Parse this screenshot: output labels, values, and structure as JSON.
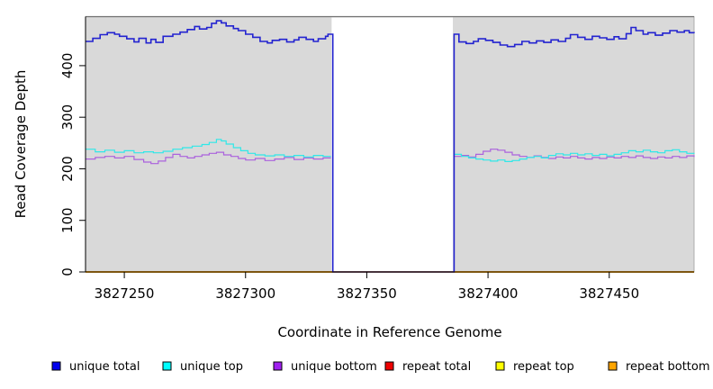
{
  "chart_data": {
    "type": "line",
    "title": "",
    "xlabel": "Coordinate in Reference Genome",
    "ylabel": "Read Coverage Depth",
    "xlim": [
      3827234,
      3827485
    ],
    "ylim": [
      0,
      495
    ],
    "x_ticks": [
      3827250,
      3827300,
      3827350,
      3827400,
      3827450
    ],
    "y_ticks": [
      0,
      100,
      200,
      300,
      400
    ],
    "grid": "off",
    "plot_bg": "#d9d9d9",
    "plot_border_color": "#9e9e9e",
    "top_border_color": "#6f6f6f",
    "axis_color": "#000000",
    "masked_region": {
      "from": 3827335.5,
      "to": 3827385.5,
      "fill": "#ffffff"
    },
    "legend_position": "bottom",
    "interpolation": "step-after",
    "series": [
      {
        "name": "unique total",
        "line_color": "#2323d0",
        "legend_color": "#0000ee",
        "line_width": 1.6,
        "draw_order": 6,
        "segments": [
          [
            [
              3827234,
              447
            ],
            [
              3827237,
              453
            ],
            [
              3827240,
              460
            ],
            [
              3827243,
              464
            ],
            [
              3827246,
              461
            ],
            [
              3827248,
              457
            ],
            [
              3827251,
              452
            ],
            [
              3827254,
              446
            ],
            [
              3827256,
              453
            ],
            [
              3827259,
              444
            ],
            [
              3827261,
              451
            ],
            [
              3827263,
              445
            ],
            [
              3827266,
              457
            ],
            [
              3827270,
              461
            ],
            [
              3827273,
              465
            ],
            [
              3827276,
              470
            ],
            [
              3827279,
              476
            ],
            [
              3827281,
              471
            ],
            [
              3827284,
              474
            ],
            [
              3827286,
              482
            ],
            [
              3827288,
              487
            ],
            [
              3827290,
              483
            ],
            [
              3827292,
              477
            ],
            [
              3827295,
              472
            ],
            [
              3827297,
              468
            ],
            [
              3827300,
              461
            ],
            [
              3827303,
              455
            ],
            [
              3827306,
              447
            ],
            [
              3827309,
              444
            ],
            [
              3827311,
              449
            ],
            [
              3827314,
              451
            ],
            [
              3827317,
              446
            ],
            [
              3827320,
              450
            ],
            [
              3827322,
              455
            ],
            [
              3827325,
              451
            ],
            [
              3827328,
              447
            ],
            [
              3827330,
              452
            ],
            [
              3827333,
              457
            ],
            [
              3827334,
              461
            ],
            [
              3827336,
              0
            ],
            [
              3827386,
              461
            ],
            [
              3827388,
              446
            ],
            [
              3827391,
              443
            ],
            [
              3827394,
              447
            ],
            [
              3827396,
              452
            ],
            [
              3827399,
              449
            ],
            [
              3827402,
              445
            ],
            [
              3827405,
              440
            ],
            [
              3827408,
              437
            ],
            [
              3827411,
              441
            ],
            [
              3827414,
              447
            ],
            [
              3827417,
              444
            ],
            [
              3827420,
              448
            ],
            [
              3827423,
              445
            ],
            [
              3827426,
              450
            ],
            [
              3827429,
              447
            ],
            [
              3827432,
              453
            ],
            [
              3827434,
              460
            ],
            [
              3827437,
              455
            ],
            [
              3827440,
              451
            ],
            [
              3827443,
              457
            ],
            [
              3827446,
              454
            ],
            [
              3827449,
              451
            ],
            [
              3827452,
              456
            ],
            [
              3827454,
              452
            ],
            [
              3827457,
              462
            ],
            [
              3827459,
              474
            ],
            [
              3827461,
              468
            ],
            [
              3827464,
              461
            ],
            [
              3827466,
              464
            ],
            [
              3827469,
              459
            ],
            [
              3827472,
              463
            ],
            [
              3827475,
              468
            ],
            [
              3827478,
              465
            ],
            [
              3827481,
              468
            ],
            [
              3827483,
              464
            ],
            [
              3827485,
              463
            ]
          ]
        ]
      },
      {
        "name": "unique top",
        "line_color": "#30e8e8",
        "legend_color": "#00ffff",
        "line_width": 1.2,
        "draw_order": 5,
        "segments": [
          [
            [
              3827234,
              238
            ],
            [
              3827238,
              233
            ],
            [
              3827242,
              236
            ],
            [
              3827246,
              232
            ],
            [
              3827250,
              235
            ],
            [
              3827254,
              231
            ],
            [
              3827258,
              233
            ],
            [
              3827262,
              231
            ],
            [
              3827266,
              234
            ],
            [
              3827270,
              238
            ],
            [
              3827274,
              241
            ],
            [
              3827278,
              244
            ],
            [
              3827282,
              247
            ],
            [
              3827285,
              251
            ],
            [
              3827288,
              257
            ],
            [
              3827290,
              254
            ],
            [
              3827292,
              248
            ],
            [
              3827295,
              241
            ],
            [
              3827298,
              235
            ],
            [
              3827301,
              230
            ],
            [
              3827304,
              227
            ],
            [
              3827308,
              225
            ],
            [
              3827312,
              227
            ],
            [
              3827316,
              224
            ],
            [
              3827320,
              226
            ],
            [
              3827324,
              223
            ],
            [
              3827328,
              226
            ],
            [
              3827332,
              224
            ],
            [
              3827335,
              225
            ]
          ],
          [
            [
              3827386,
              228
            ],
            [
              3827389,
              224
            ],
            [
              3827392,
              221
            ],
            [
              3827395,
              219
            ],
            [
              3827398,
              217
            ],
            [
              3827401,
              215
            ],
            [
              3827404,
              217
            ],
            [
              3827407,
              214
            ],
            [
              3827410,
              216
            ],
            [
              3827413,
              219
            ],
            [
              3827416,
              222
            ],
            [
              3827419,
              224
            ],
            [
              3827422,
              221
            ],
            [
              3827425,
              226
            ],
            [
              3827428,
              229
            ],
            [
              3827431,
              227
            ],
            [
              3827434,
              230
            ],
            [
              3827437,
              227
            ],
            [
              3827440,
              229
            ],
            [
              3827443,
              226
            ],
            [
              3827446,
              228
            ],
            [
              3827449,
              225
            ],
            [
              3827452,
              228
            ],
            [
              3827455,
              231
            ],
            [
              3827458,
              235
            ],
            [
              3827461,
              233
            ],
            [
              3827464,
              236
            ],
            [
              3827467,
              233
            ],
            [
              3827470,
              231
            ],
            [
              3827473,
              235
            ],
            [
              3827476,
              237
            ],
            [
              3827479,
              233
            ],
            [
              3827482,
              230
            ],
            [
              3827485,
              229
            ]
          ]
        ]
      },
      {
        "name": "unique bottom",
        "line_color": "#ab62dd",
        "legend_color": "#a020f0",
        "line_width": 1.2,
        "draw_order": 4,
        "segments": [
          [
            [
              3827234,
              219
            ],
            [
              3827238,
              222
            ],
            [
              3827242,
              224
            ],
            [
              3827246,
              221
            ],
            [
              3827250,
              224
            ],
            [
              3827254,
              218
            ],
            [
              3827258,
              213
            ],
            [
              3827261,
              210
            ],
            [
              3827264,
              215
            ],
            [
              3827267,
              222
            ],
            [
              3827270,
              228
            ],
            [
              3827273,
              224
            ],
            [
              3827276,
              221
            ],
            [
              3827279,
              224
            ],
            [
              3827282,
              227
            ],
            [
              3827285,
              230
            ],
            [
              3827288,
              232
            ],
            [
              3827291,
              227
            ],
            [
              3827294,
              224
            ],
            [
              3827297,
              220
            ],
            [
              3827300,
              217
            ],
            [
              3827304,
              220
            ],
            [
              3827308,
              216
            ],
            [
              3827312,
              219
            ],
            [
              3827316,
              222
            ],
            [
              3827320,
              218
            ],
            [
              3827324,
              221
            ],
            [
              3827328,
              219
            ],
            [
              3827332,
              221
            ],
            [
              3827335,
              220
            ]
          ],
          [
            [
              3827386,
              224
            ],
            [
              3827389,
              226
            ],
            [
              3827392,
              223
            ],
            [
              3827395,
              228
            ],
            [
              3827398,
              234
            ],
            [
              3827401,
              238
            ],
            [
              3827404,
              236
            ],
            [
              3827407,
              232
            ],
            [
              3827410,
              227
            ],
            [
              3827413,
              224
            ],
            [
              3827416,
              222
            ],
            [
              3827419,
              225
            ],
            [
              3827422,
              222
            ],
            [
              3827425,
              220
            ],
            [
              3827428,
              223
            ],
            [
              3827431,
              221
            ],
            [
              3827434,
              224
            ],
            [
              3827437,
              221
            ],
            [
              3827440,
              219
            ],
            [
              3827443,
              222
            ],
            [
              3827446,
              220
            ],
            [
              3827449,
              223
            ],
            [
              3827452,
              221
            ],
            [
              3827455,
              224
            ],
            [
              3827458,
              222
            ],
            [
              3827461,
              225
            ],
            [
              3827464,
              222
            ],
            [
              3827467,
              220
            ],
            [
              3827470,
              223
            ],
            [
              3827473,
              221
            ],
            [
              3827476,
              224
            ],
            [
              3827479,
              222
            ],
            [
              3827482,
              225
            ],
            [
              3827485,
              223
            ]
          ]
        ]
      },
      {
        "name": "repeat total",
        "line_color": "#e00000",
        "legend_color": "#ee0000",
        "line_width": 1.2,
        "draw_order": 1,
        "segments": [
          [
            [
              3827234,
              0
            ],
            [
              3827485,
              0
            ]
          ]
        ]
      },
      {
        "name": "repeat top",
        "line_color": "#ffff00",
        "legend_color": "#ffff00",
        "line_width": 1.2,
        "draw_order": 2,
        "segments": [
          [
            [
              3827234,
              0
            ],
            [
              3827485,
              0
            ]
          ]
        ]
      },
      {
        "name": "repeat bottom",
        "line_color": "#ffa500",
        "legend_color": "#ffa500",
        "line_width": 1.7,
        "draw_order": 3,
        "segments": [
          [
            [
              3827234,
              0
            ],
            [
              3827485,
              0
            ]
          ]
        ]
      }
    ]
  }
}
